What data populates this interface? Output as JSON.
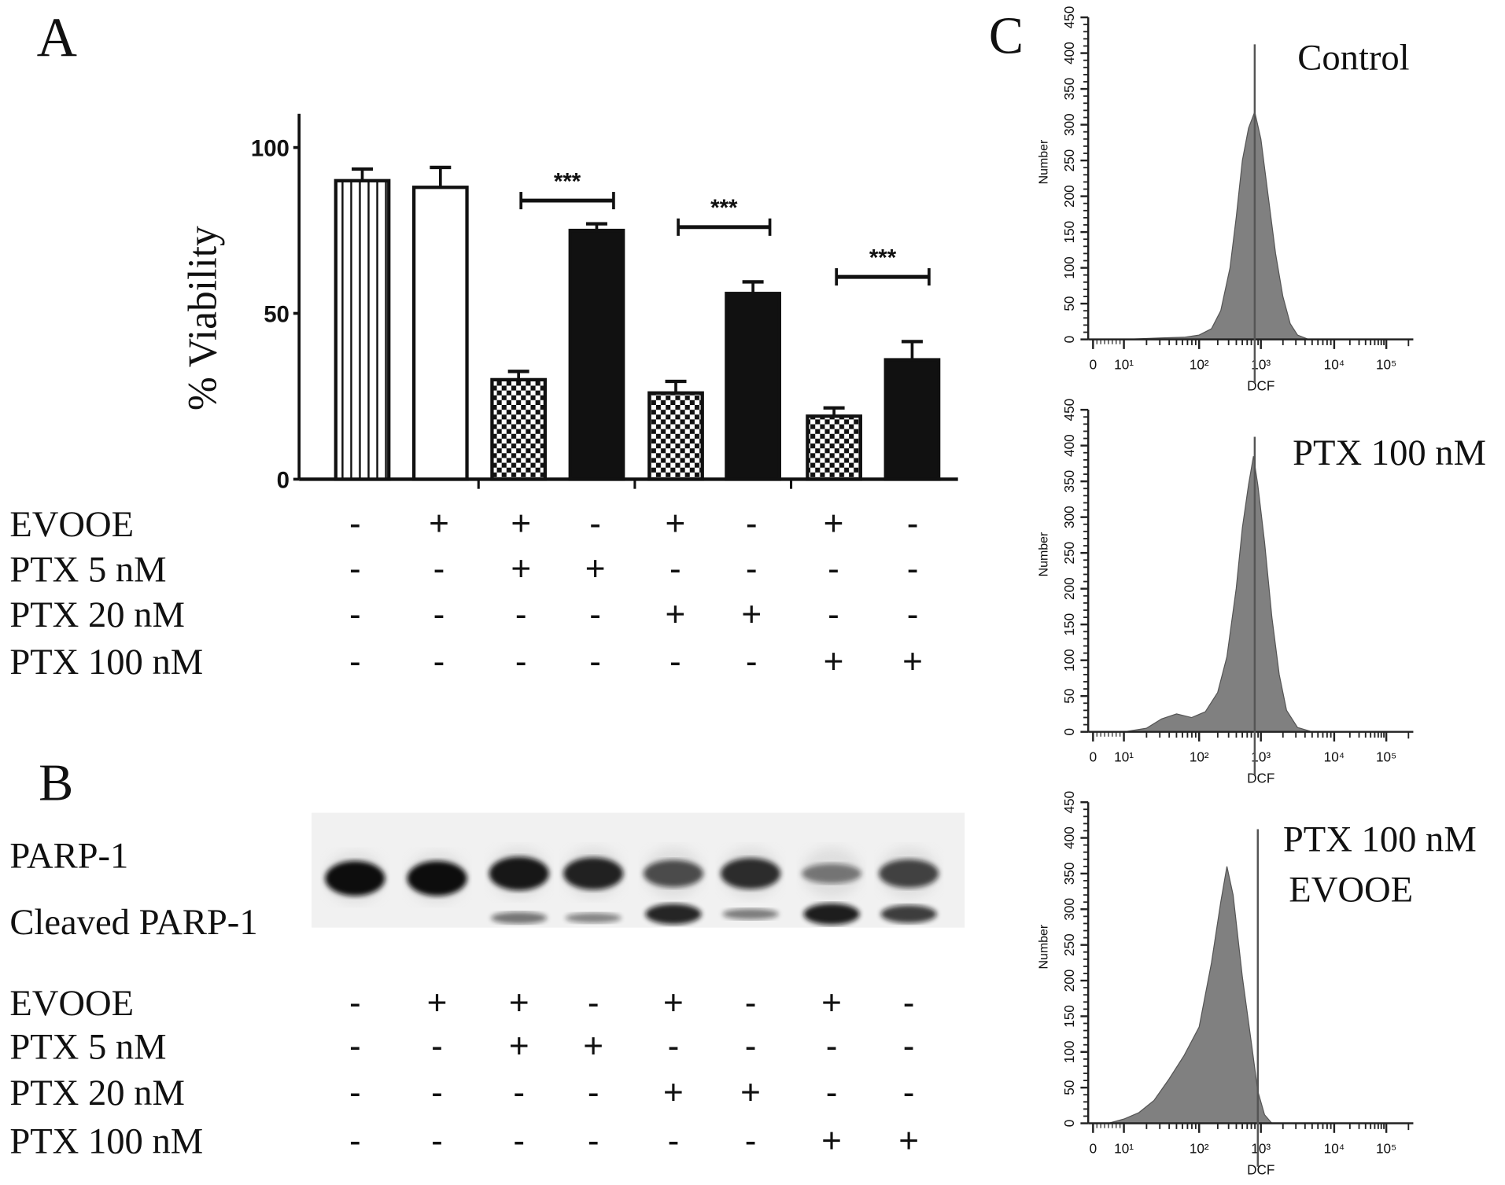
{
  "panels": {
    "a": "A",
    "b": "B",
    "c": "C"
  },
  "treatment_labels": [
    "EVOOE",
    "PTX 5 nM",
    "PTX 20 nM",
    "PTX 100 nM"
  ],
  "panel_a": {
    "treatments": [
      {
        "label": "EVOOE",
        "values": [
          "-",
          "+",
          "+",
          "-",
          "+",
          "-",
          "+",
          "-"
        ]
      },
      {
        "label": "PTX 5 nM",
        "values": [
          "-",
          "-",
          "+",
          "+",
          "-",
          "-",
          "-",
          "-"
        ]
      },
      {
        "label": "PTX 20 nM",
        "values": [
          "-",
          "-",
          "-",
          "-",
          "+",
          "+",
          "-",
          "-"
        ]
      },
      {
        "label": "PTX 100 nM",
        "values": [
          "-",
          "-",
          "-",
          "-",
          "-",
          "-",
          "+",
          "+"
        ]
      }
    ]
  },
  "panel_b": {
    "band_labels": [
      "PARP-1",
      "Cleaved PARP-1"
    ],
    "parp1_intensity": [
      1.0,
      1.0,
      0.95,
      0.9,
      0.7,
      0.85,
      0.4,
      0.75
    ],
    "cleaved_intensity": [
      0.0,
      0.0,
      0.35,
      0.25,
      0.85,
      0.3,
      0.9,
      0.7
    ],
    "treatments": [
      {
        "label": "EVOOE",
        "values": [
          "-",
          "+",
          "+",
          "-",
          "+",
          "-",
          "+",
          "-"
        ]
      },
      {
        "label": "PTX 5 nM",
        "values": [
          "-",
          "-",
          "+",
          "+",
          "-",
          "-",
          "-",
          "-"
        ]
      },
      {
        "label": "PTX 20 nM",
        "values": [
          "-",
          "-",
          "-",
          "-",
          "+",
          "+",
          "-",
          "-"
        ]
      },
      {
        "label": "PTX 100 nM",
        "values": [
          "-",
          "-",
          "-",
          "-",
          "-",
          "-",
          "+",
          "+"
        ]
      }
    ]
  },
  "chart_data": [
    {
      "type": "bar",
      "title": "",
      "xlabel": "",
      "ylabel": "% Viability",
      "ylim": [
        0,
        110
      ],
      "yticks": [
        "0",
        "50",
        "100"
      ],
      "values": [
        90,
        88,
        30,
        75,
        26,
        56,
        19,
        36
      ],
      "errors": [
        3.5,
        6,
        2.5,
        2,
        3.5,
        3.5,
        2.5,
        5.5
      ],
      "patterns": [
        "vertical-stripes",
        "white",
        "checker",
        "black",
        "checker",
        "black",
        "checker",
        "black"
      ],
      "significance": [
        {
          "from": 2,
          "to": 3,
          "y": 84,
          "label": "***"
        },
        {
          "from": 4,
          "to": 5,
          "y": 76,
          "label": "***"
        },
        {
          "from": 6,
          "to": 7,
          "y": 61,
          "label": "***"
        }
      ]
    },
    {
      "type": "area",
      "title": "Control",
      "xlabel": "DCF",
      "ylabel": "Number",
      "ylim": [
        0,
        450
      ],
      "xscale": "log",
      "yticks": [
        "0",
        "50",
        "100",
        "150",
        "200",
        "250",
        "300",
        "350",
        "400",
        "450"
      ],
      "xticks": [
        "0",
        "10¹",
        "10²",
        "10³",
        "10⁴",
        "10⁵"
      ],
      "marker_log10": 2.9,
      "points": [
        [
          1,
          0
        ],
        [
          1.5,
          2
        ],
        [
          1.8,
          3
        ],
        [
          2.0,
          6
        ],
        [
          2.2,
          15
        ],
        [
          2.35,
          40
        ],
        [
          2.5,
          100
        ],
        [
          2.6,
          170
        ],
        [
          2.7,
          250
        ],
        [
          2.8,
          295
        ],
        [
          2.9,
          318
        ],
        [
          3.0,
          280
        ],
        [
          3.1,
          200
        ],
        [
          3.2,
          120
        ],
        [
          3.3,
          60
        ],
        [
          3.4,
          22
        ],
        [
          3.5,
          6
        ],
        [
          3.65,
          0
        ]
      ]
    },
    {
      "type": "area",
      "title": "PTX 100 nM",
      "xlabel": "DCF",
      "ylabel": "Number",
      "ylim": [
        0,
        450
      ],
      "xscale": "log",
      "yticks": [
        "0",
        "50",
        "100",
        "150",
        "200",
        "250",
        "300",
        "350",
        "400",
        "450"
      ],
      "xticks": [
        "0",
        "10¹",
        "10²",
        "10³",
        "10⁴",
        "10⁵"
      ],
      "marker_log10": 2.9,
      "points": [
        [
          1,
          0
        ],
        [
          1.3,
          5
        ],
        [
          1.5,
          18
        ],
        [
          1.7,
          25
        ],
        [
          1.9,
          20
        ],
        [
          2.1,
          28
        ],
        [
          2.3,
          55
        ],
        [
          2.45,
          105
        ],
        [
          2.6,
          200
        ],
        [
          2.7,
          285
        ],
        [
          2.8,
          345
        ],
        [
          2.88,
          385
        ],
        [
          2.95,
          345
        ],
        [
          3.05,
          265
        ],
        [
          3.15,
          160
        ],
        [
          3.25,
          80
        ],
        [
          3.35,
          30
        ],
        [
          3.5,
          6
        ],
        [
          3.7,
          0
        ]
      ]
    },
    {
      "type": "area",
      "title": "PTX 100 nM EVOOE",
      "title_lines": [
        "PTX 100 nM",
        "EVOOE"
      ],
      "xlabel": "DCF",
      "ylabel": "Number",
      "ylim": [
        0,
        450
      ],
      "xscale": "log",
      "yticks": [
        "0",
        "50",
        "100",
        "150",
        "200",
        "250",
        "300",
        "350",
        "400",
        "450"
      ],
      "xticks": [
        "0",
        "10¹",
        "10²",
        "10³",
        "10⁴",
        "10⁵"
      ],
      "marker_log10": 2.95,
      "points": [
        [
          0.5,
          0
        ],
        [
          1,
          6
        ],
        [
          1.2,
          15
        ],
        [
          1.4,
          32
        ],
        [
          1.6,
          62
        ],
        [
          1.8,
          95
        ],
        [
          2.0,
          135
        ],
        [
          2.2,
          225
        ],
        [
          2.35,
          310
        ],
        [
          2.45,
          360
        ],
        [
          2.55,
          320
        ],
        [
          2.7,
          205
        ],
        [
          2.85,
          110
        ],
        [
          2.95,
          45
        ],
        [
          3.05,
          12
        ],
        [
          3.15,
          0
        ]
      ]
    }
  ]
}
